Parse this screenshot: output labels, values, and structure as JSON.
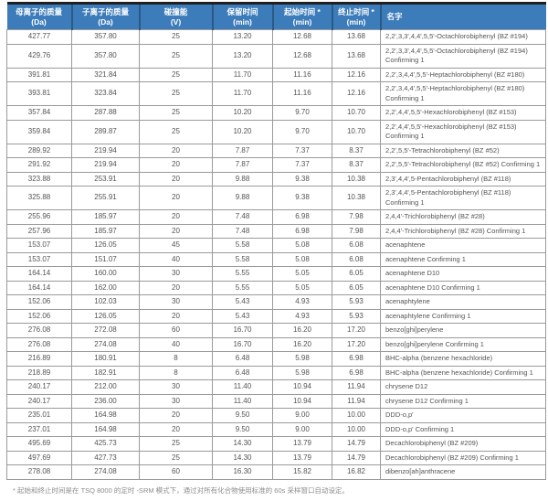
{
  "table": {
    "columns": [
      {
        "title": "母离子的质量",
        "unit": "(Da)"
      },
      {
        "title": "子离子的质量",
        "unit": "(Da)"
      },
      {
        "title": "碰撞能",
        "unit": "(V)"
      },
      {
        "title": "保留时间",
        "unit": "(min)"
      },
      {
        "title": "起始时间 *",
        "unit": "(min)"
      },
      {
        "title": "终止时间 *",
        "unit": "(min)"
      },
      {
        "title": "名字",
        "unit": ""
      }
    ],
    "rows": [
      [
        "427.77",
        "357.80",
        "25",
        "13.20",
        "12.68",
        "13.68",
        "2,2',3,3',4,4',5,5'-Octachlorobiphenyl (BZ #194)"
      ],
      [
        "429.76",
        "357.80",
        "25",
        "13.20",
        "12.68",
        "13.68",
        "2,2',3,3',4,4',5,5'-Octachlorobiphenyl (BZ #194) Confirming 1"
      ],
      [
        "391.81",
        "321.84",
        "25",
        "11.70",
        "11.16",
        "12.16",
        "2,2',3,4,4',5,5'-Heptachlorobiphenyl (BZ #180)"
      ],
      [
        "393.81",
        "323.84",
        "25",
        "11.70",
        "11.16",
        "12.16",
        "2,2',3,4,4',5,5'-Heptachlorobiphenyl (BZ #180) Confirming 1"
      ],
      [
        "357.84",
        "287.88",
        "25",
        "10.20",
        "9.70",
        "10.70",
        "2,2',4,4',5,5'-Hexachlorobiphenyl (BZ #153)"
      ],
      [
        "359.84",
        "289.87",
        "25",
        "10.20",
        "9.70",
        "10.70",
        "2,2',4,4',5,5'-Hexachlorobiphenyl (BZ #153) Confirming 1"
      ],
      [
        "289.92",
        "219.94",
        "20",
        "7.87",
        "7.37",
        "8.37",
        "2,2',5,5'-Tetrachlorobiphenyl (BZ #52)"
      ],
      [
        "291.92",
        "219.94",
        "20",
        "7.87",
        "7.37",
        "8.37",
        "2,2',5,5'-Tetrachlorobiphenyl (BZ #52) Confirming 1"
      ],
      [
        "323.88",
        "253.91",
        "20",
        "9.88",
        "9.38",
        "10.38",
        "2,3',4,4',5-Pentachlorobiphenyl (BZ #118)"
      ],
      [
        "325.88",
        "255.91",
        "20",
        "9.88",
        "9.38",
        "10.38",
        "2,3',4,4',5-Pentachlorobiphenyl (BZ #118) Confirming 1"
      ],
      [
        "255.96",
        "185.97",
        "20",
        "7.48",
        "6.98",
        "7.98",
        "2,4,4'-Trichlorobiphenyl (BZ #28)"
      ],
      [
        "257.96",
        "185.97",
        "20",
        "7.48",
        "6.98",
        "7.98",
        "2,4,4'-Trichlorobiphenyl (BZ #28) Confirming 1"
      ],
      [
        "153.07",
        "126.05",
        "45",
        "5.58",
        "5.08",
        "6.08",
        "acenaphtene"
      ],
      [
        "153.07",
        "151.07",
        "40",
        "5.58",
        "5.08",
        "6.08",
        "acenaphtene Confirming 1"
      ],
      [
        "164.14",
        "160.00",
        "30",
        "5.55",
        "5.05",
        "6.05",
        "acenaphtene D10"
      ],
      [
        "164.14",
        "162.00",
        "20",
        "5.55",
        "5.05",
        "6.05",
        "acenaphtene D10 Confirming 1"
      ],
      [
        "152.06",
        "102.03",
        "30",
        "5.43",
        "4.93",
        "5.93",
        "acenaphtylene"
      ],
      [
        "152.06",
        "126.05",
        "20",
        "5.43",
        "4.93",
        "5.93",
        "acenaphtylene Confirming 1"
      ],
      [
        "276.08",
        "272.08",
        "60",
        "16.70",
        "16.20",
        "17.20",
        "benzo[ghi]perylene"
      ],
      [
        "276.08",
        "274.08",
        "40",
        "16.70",
        "16.20",
        "17.20",
        "benzo[ghi]perylene Confirming 1"
      ],
      [
        "216.89",
        "180.91",
        "8",
        "6.48",
        "5.98",
        "6.98",
        "BHC-alpha (benzene hexachloride)"
      ],
      [
        "218.89",
        "182.91",
        "8",
        "6.48",
        "5.98",
        "6.98",
        "BHC-alpha (benzene hexachloride) Confirming 1"
      ],
      [
        "240.17",
        "212.00",
        "30",
        "11.40",
        "10.94",
        "11.94",
        "chrysene D12"
      ],
      [
        "240.17",
        "236.00",
        "30",
        "11.40",
        "10.94",
        "11.94",
        "chrysene D12 Confirming 1"
      ],
      [
        "235.01",
        "164.98",
        "20",
        "9.50",
        "9.00",
        "10.00",
        "DDD-o,p'"
      ],
      [
        "237.01",
        "164.98",
        "20",
        "9.50",
        "9.00",
        "10.00",
        "DDD-o,p' Confirming 1"
      ],
      [
        "495.69",
        "425.73",
        "25",
        "14.30",
        "13.79",
        "14.79",
        "Decachlorobiphenyl (BZ #209)"
      ],
      [
        "497.69",
        "427.73",
        "25",
        "14.30",
        "13.79",
        "14.79",
        "Decachlorobiphenyl (BZ #209) Confirming 1"
      ],
      [
        "278.08",
        "274.08",
        "60",
        "16.30",
        "15.82",
        "16.82",
        "dibenzo[ah]anthracene"
      ]
    ]
  },
  "footnote": "* 起始和终止时间是在 TSQ 8000 的定时 -SRM 模式下，通过对所有化合物使用标准的 60s 采样窗口自动设定。",
  "colors": {
    "header_bg": "#3c7cba",
    "header_divider": "#2b5984",
    "top_rule": "#202020",
    "cell_border": "#9a9a9a",
    "text": "#545454",
    "footnote_text": "#8c8c8c"
  }
}
